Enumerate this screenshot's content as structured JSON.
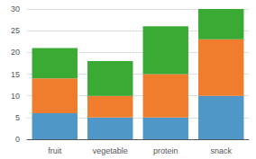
{
  "chart_data": {
    "type": "bar",
    "stacked": true,
    "categories": [
      "fruit",
      "vegetable",
      "protein",
      "snack"
    ],
    "series": [
      {
        "color": "#4e97c6",
        "values": [
          6,
          5,
          5,
          10
        ]
      },
      {
        "color": "#f07d2e",
        "values": [
          8,
          5,
          10,
          13
        ]
      },
      {
        "color": "#3aaa35",
        "values": [
          7,
          8,
          11,
          7
        ]
      }
    ],
    "ylim": [
      0,
      30
    ],
    "yticks": [
      0,
      5,
      10,
      15,
      20,
      25,
      30
    ],
    "grid": true
  }
}
